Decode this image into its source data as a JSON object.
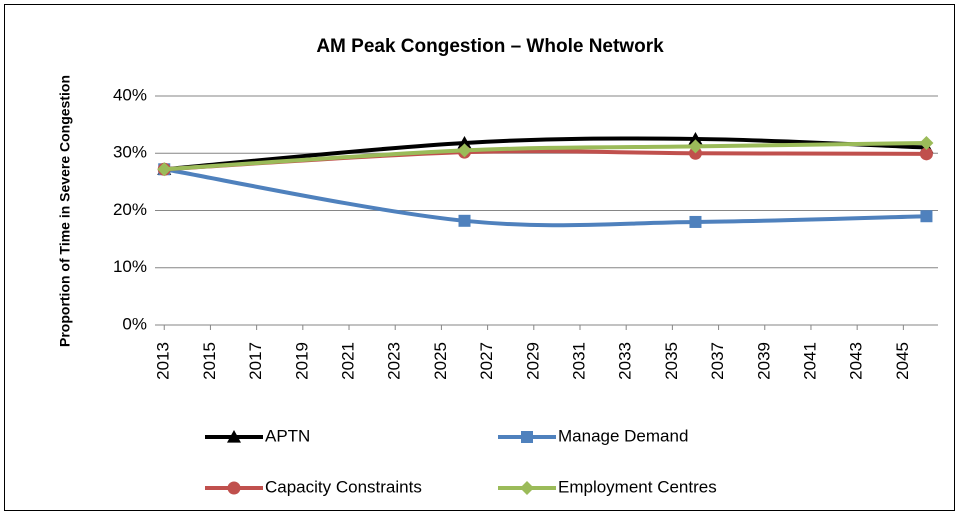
{
  "chart_data": {
    "type": "line",
    "title": "AM Peak Congestion – Whole Network",
    "y_label": "Proportion of Time in Severe Congestion",
    "x": [
      2013,
      2026,
      2036,
      2046
    ],
    "series": [
      {
        "name": "APTN",
        "color": "#000000",
        "marker": "triangle",
        "values": [
          27.2,
          31.8,
          32.5,
          31.0
        ]
      },
      {
        "name": "Manage Demand",
        "color": "#4f81bd",
        "marker": "square",
        "values": [
          27.2,
          18.2,
          18.0,
          19.0
        ]
      },
      {
        "name": "Capacity Constraints",
        "color": "#c0504d",
        "marker": "circle",
        "values": [
          27.2,
          30.2,
          30.0,
          29.9
        ]
      },
      {
        "name": "Employment Centres",
        "color": "#9bbb59",
        "marker": "diamond",
        "values": [
          27.2,
          30.5,
          31.2,
          31.8
        ]
      }
    ],
    "xlim": [
      2012.6,
      2046.5
    ],
    "xticks": [
      2013,
      2015,
      2017,
      2019,
      2021,
      2023,
      2025,
      2027,
      2029,
      2031,
      2033,
      2035,
      2037,
      2039,
      2041,
      2043,
      2045
    ],
    "ylim": [
      0,
      40
    ],
    "yticks": [
      {
        "value": 0,
        "label": "0%"
      },
      {
        "value": 10,
        "label": "10%"
      },
      {
        "value": 20,
        "label": "20%"
      },
      {
        "value": 30,
        "label": "30%"
      },
      {
        "value": 40,
        "label": "40%"
      }
    ],
    "grid": true,
    "smooth": true,
    "legend": "bottom"
  }
}
